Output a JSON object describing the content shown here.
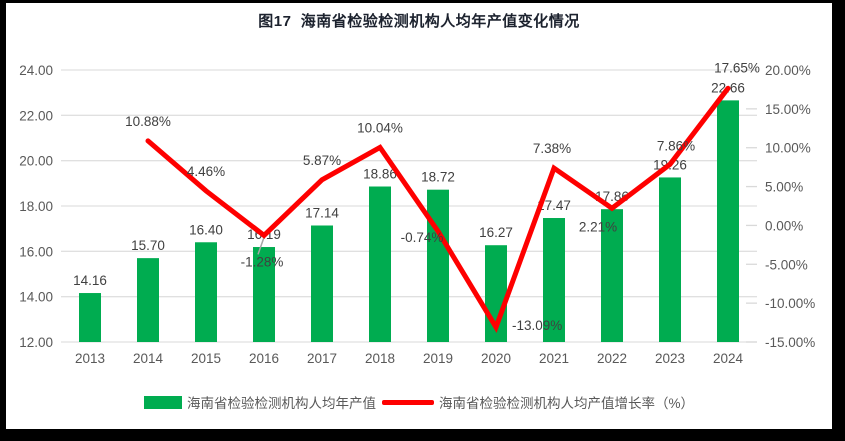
{
  "title": "图17  海南省检验检测机构人均年产值变化情况",
  "colors": {
    "bar_green": "#00AC50",
    "line_red": "#FE0000",
    "grid": "#E0E0E0",
    "axis_text": "#595959",
    "data_label_text": "#404040",
    "leader_line": "#A6A6A6",
    "scan_frame": "#000000"
  },
  "chart_data": {
    "type": "bar",
    "subtype": "bar-line-combo",
    "title": "图17  海南省检验检测机构人均年产值变化情况",
    "categories": [
      "2013",
      "2014",
      "2015",
      "2016",
      "2017",
      "2018",
      "2019",
      "2020",
      "2021",
      "2022",
      "2023",
      "2024"
    ],
    "series": [
      {
        "name": "海南省检验检测机构人均年产值",
        "type": "bar",
        "axis": "left",
        "values": [
          14.16,
          15.7,
          16.4,
          16.19,
          17.14,
          18.86,
          18.72,
          16.27,
          17.47,
          17.86,
          19.26,
          22.66
        ],
        "labels": [
          "14.16",
          "15.70",
          "16.40",
          "16.19",
          "17.14",
          "18.86",
          "18.72",
          "16.27",
          "17.47",
          "17.86",
          "19.26",
          "22.66"
        ]
      },
      {
        "name": "海南省检验检测机构人均产值增长率（%）",
        "type": "line",
        "axis": "right",
        "values": [
          null,
          10.88,
          4.46,
          -1.28,
          5.87,
          10.04,
          -0.74,
          -13.09,
          7.38,
          2.21,
          7.86,
          17.65
        ],
        "labels": [
          "",
          "10.88%",
          "4.46%",
          "-1.28%",
          "5.87%",
          "10.04%",
          "-0.74%",
          "-13.09%",
          "7.38%",
          "2.21%",
          "7.86%",
          "17.65%"
        ]
      }
    ],
    "left_axis": {
      "min": 12,
      "max": 24,
      "step": 2,
      "tick_labels": [
        "12.00",
        "14.00",
        "16.00",
        "18.00",
        "20.00",
        "22.00",
        "24.00"
      ]
    },
    "right_axis": {
      "min": -15,
      "max": 20,
      "step": 5,
      "tick_labels": [
        "-15.00%",
        "-10.00%",
        "-5.00%",
        "0.00%",
        "5.00%",
        "10.00%",
        "15.00%",
        "20.00%"
      ]
    },
    "grid": true,
    "legend_position": "bottom"
  }
}
